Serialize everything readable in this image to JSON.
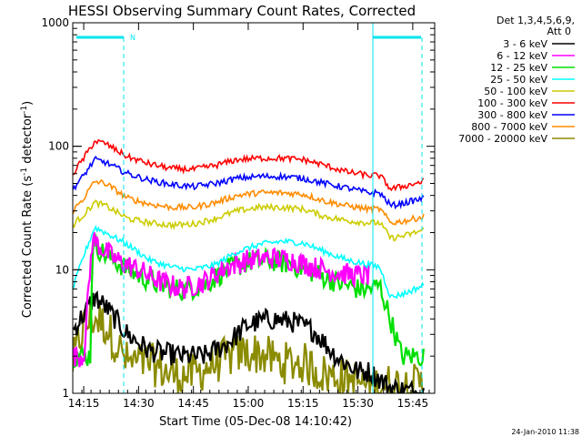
{
  "chart_data": {
    "type": "line",
    "title": "HESSI Observing Summary Count Rates, Corrected",
    "xlabel": "Start Time (05-Dec-08 14:10:42)",
    "ylabel_main": "Corrected Count Rate (s",
    "ylabel_sup1": "-1",
    "ylabel_mid": " detector",
    "ylabel_sup2": "-1",
    "ylabel_end": ")",
    "y_scale": "log",
    "ylim": [
      1,
      1000
    ],
    "xlim_minutes": [
      14.2,
      15.85
    ],
    "x_ticks": [
      {
        "label": "14:15",
        "value": 14.25
      },
      {
        "label": "14:30",
        "value": 14.5
      },
      {
        "label": "14:45",
        "value": 14.75
      },
      {
        "label": "15:00",
        "value": 15.0
      },
      {
        "label": "15:15",
        "value": 15.25
      },
      {
        "label": "15:30",
        "value": 15.5
      },
      {
        "label": "15:45",
        "value": 15.75
      }
    ],
    "y_ticks": [
      {
        "label": "1",
        "value": 1
      },
      {
        "label": "10",
        "value": 10
      },
      {
        "label": "100",
        "value": 100
      },
      {
        "label": "1000",
        "value": 1000
      }
    ],
    "legend_header": [
      "Det 1,3,4,5,6,9,",
      "Att 0"
    ],
    "legend_position": "right",
    "series": [
      {
        "name": "3 - 6 keV",
        "color": "#000000",
        "points": [
          [
            14.2,
            3.2
          ],
          [
            14.3,
            6
          ],
          [
            14.35,
            5
          ],
          [
            14.45,
            3
          ],
          [
            14.55,
            2.2
          ],
          [
            14.7,
            2
          ],
          [
            14.8,
            2
          ],
          [
            14.9,
            2.5
          ],
          [
            15.0,
            3.6
          ],
          [
            15.1,
            4
          ],
          [
            15.2,
            3.8
          ],
          [
            15.3,
            3.2
          ],
          [
            15.4,
            2
          ],
          [
            15.5,
            1.5
          ],
          [
            15.55,
            1.5
          ],
          [
            15.6,
            1.3
          ],
          [
            15.65,
            1.1
          ],
          [
            15.8,
            1
          ]
        ]
      },
      {
        "name": "6 - 12 keV",
        "color": "#ff00ff",
        "points": [
          [
            14.2,
            2
          ],
          [
            14.25,
            2
          ],
          [
            14.29,
            18
          ],
          [
            14.33,
            15
          ],
          [
            14.4,
            12
          ],
          [
            14.5,
            10
          ],
          [
            14.6,
            8
          ],
          [
            14.7,
            7
          ],
          [
            14.8,
            8
          ],
          [
            14.9,
            10.5
          ],
          [
            15.0,
            12
          ],
          [
            15.1,
            12.5
          ],
          [
            15.2,
            12
          ],
          [
            15.3,
            10.5
          ],
          [
            15.4,
            9.5
          ],
          [
            15.5,
            9
          ],
          [
            15.55,
            9
          ]
        ]
      },
      {
        "name": "12 - 25 keV",
        "color": "#00e000",
        "points": [
          [
            14.2,
            2
          ],
          [
            14.28,
            2
          ],
          [
            14.29,
            17
          ],
          [
            14.33,
            14
          ],
          [
            14.4,
            11.5
          ],
          [
            14.5,
            9
          ],
          [
            14.6,
            7.5
          ],
          [
            14.7,
            6.8
          ],
          [
            14.8,
            7.5
          ],
          [
            14.9,
            10
          ],
          [
            15.0,
            11.5
          ],
          [
            15.1,
            12
          ],
          [
            15.2,
            11
          ],
          [
            15.3,
            9.5
          ],
          [
            15.4,
            8
          ],
          [
            15.5,
            7
          ],
          [
            15.55,
            7
          ],
          [
            15.6,
            7.5
          ],
          [
            15.7,
            2
          ],
          [
            15.8,
            2
          ]
        ]
      },
      {
        "name": "25 - 50 keV",
        "color": "#00ffff",
        "points": [
          [
            14.2,
            7
          ],
          [
            14.25,
            13
          ],
          [
            14.3,
            22
          ],
          [
            14.35,
            20
          ],
          [
            14.45,
            16
          ],
          [
            14.55,
            12
          ],
          [
            14.65,
            10.5
          ],
          [
            14.75,
            10
          ],
          [
            14.85,
            11
          ],
          [
            14.95,
            14
          ],
          [
            15.05,
            16
          ],
          [
            15.15,
            17
          ],
          [
            15.25,
            16.5
          ],
          [
            15.35,
            14
          ],
          [
            15.45,
            12
          ],
          [
            15.55,
            11
          ],
          [
            15.6,
            10.5
          ],
          [
            15.65,
            6
          ],
          [
            15.72,
            6.5
          ],
          [
            15.8,
            7.5
          ]
        ]
      },
      {
        "name": "50 - 100 keV",
        "color": "#cccc00",
        "points": [
          [
            14.2,
            23
          ],
          [
            14.25,
            28
          ],
          [
            14.3,
            35
          ],
          [
            14.35,
            33
          ],
          [
            14.45,
            26
          ],
          [
            14.55,
            24
          ],
          [
            14.65,
            23
          ],
          [
            14.75,
            23.5
          ],
          [
            14.85,
            26
          ],
          [
            14.95,
            30
          ],
          [
            15.05,
            32
          ],
          [
            15.15,
            32
          ],
          [
            15.25,
            31
          ],
          [
            15.35,
            27
          ],
          [
            15.45,
            25
          ],
          [
            15.55,
            24
          ],
          [
            15.6,
            24
          ],
          [
            15.65,
            18
          ],
          [
            15.72,
            19
          ],
          [
            15.8,
            21
          ]
        ]
      },
      {
        "name": "100 - 300 keV",
        "color": "#ff0000",
        "points": [
          [
            14.2,
            60
          ],
          [
            14.25,
            80
          ],
          [
            14.3,
            110
          ],
          [
            14.35,
            105
          ],
          [
            14.45,
            82
          ],
          [
            14.55,
            72
          ],
          [
            14.65,
            66
          ],
          [
            14.75,
            65
          ],
          [
            14.85,
            70
          ],
          [
            14.95,
            78
          ],
          [
            15.05,
            80
          ],
          [
            15.15,
            80
          ],
          [
            15.25,
            78
          ],
          [
            15.35,
            70
          ],
          [
            15.45,
            62
          ],
          [
            15.55,
            58
          ],
          [
            15.6,
            58
          ],
          [
            15.65,
            45
          ],
          [
            15.72,
            48
          ],
          [
            15.8,
            52
          ]
        ]
      },
      {
        "name": "300 - 800 keV",
        "color": "#0000ff",
        "points": [
          [
            14.2,
            45
          ],
          [
            14.25,
            58
          ],
          [
            14.3,
            78
          ],
          [
            14.35,
            74
          ],
          [
            14.45,
            60
          ],
          [
            14.55,
            53
          ],
          [
            14.65,
            49
          ],
          [
            14.75,
            47
          ],
          [
            14.85,
            50
          ],
          [
            14.95,
            55
          ],
          [
            15.05,
            57
          ],
          [
            15.15,
            57
          ],
          [
            15.25,
            55
          ],
          [
            15.35,
            50
          ],
          [
            15.45,
            46
          ],
          [
            15.55,
            42
          ],
          [
            15.6,
            42
          ],
          [
            15.65,
            33
          ],
          [
            15.72,
            35
          ],
          [
            15.8,
            38
          ]
        ]
      },
      {
        "name": "800 - 7000 keV",
        "color": "#ff8c00",
        "points": [
          [
            14.2,
            30
          ],
          [
            14.25,
            38
          ],
          [
            14.3,
            52
          ],
          [
            14.35,
            50
          ],
          [
            14.45,
            38
          ],
          [
            14.55,
            34
          ],
          [
            14.65,
            32
          ],
          [
            14.75,
            32
          ],
          [
            14.85,
            35
          ],
          [
            14.95,
            40
          ],
          [
            15.05,
            42
          ],
          [
            15.15,
            42
          ],
          [
            15.25,
            41
          ],
          [
            15.35,
            36
          ],
          [
            15.45,
            33
          ],
          [
            15.55,
            31
          ],
          [
            15.6,
            31
          ],
          [
            15.65,
            24
          ],
          [
            15.72,
            25
          ],
          [
            15.8,
            27
          ]
        ]
      },
      {
        "name": "7000 - 20000 keV",
        "color": "#8b8b00",
        "points": [
          [
            14.2,
            1.5
          ],
          [
            14.25,
            3
          ],
          [
            14.3,
            3.5
          ],
          [
            14.35,
            3
          ],
          [
            14.45,
            1.5
          ],
          [
            14.55,
            1.5
          ],
          [
            14.65,
            1.2
          ],
          [
            14.75,
            1.2
          ],
          [
            14.85,
            1.5
          ],
          [
            14.95,
            1.8
          ],
          [
            15.05,
            1.8
          ],
          [
            15.15,
            1.5
          ],
          [
            15.25,
            1.5
          ],
          [
            15.35,
            1.2
          ],
          [
            15.45,
            1.1
          ],
          [
            15.55,
            1
          ],
          [
            15.8,
            1
          ]
        ]
      }
    ],
    "annotations": {
      "n_marker": "N"
    },
    "timestamp": "24-Jan-2010 11:38"
  }
}
